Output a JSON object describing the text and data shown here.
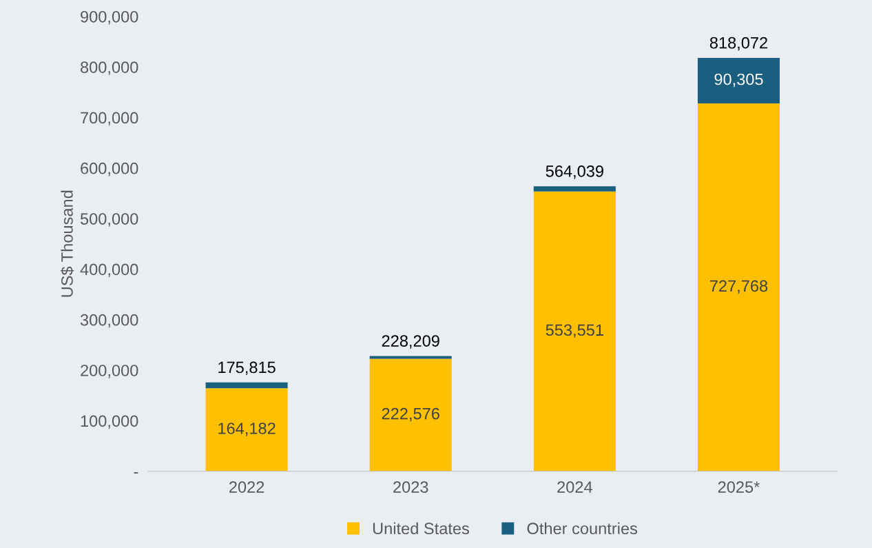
{
  "chart_data": {
    "type": "bar",
    "stacked": true,
    "ylabel": "US$ Thousand",
    "categories": [
      "2022",
      "2023",
      "2024",
      "2025*"
    ],
    "series": [
      {
        "name": "United States",
        "color": "#ffc000",
        "values": [
          164182,
          222576,
          553551,
          727768
        ],
        "value_labels": [
          "164,182",
          "222,576",
          "553,551",
          "727,768"
        ]
      },
      {
        "name": "Other countries",
        "color": "#1b5f80",
        "values": [
          11633,
          5633,
          10488,
          90305
        ],
        "value_labels": [
          null,
          null,
          null,
          "90,305"
        ]
      }
    ],
    "totals": [
      "175,815",
      "228,209",
      "564,039",
      "818,072"
    ],
    "ylim": [
      0,
      900000
    ],
    "yticks": [
      {
        "value": 0,
        "label": "-"
      },
      {
        "value": 100000,
        "label": "100,000"
      },
      {
        "value": 200000,
        "label": "200,000"
      },
      {
        "value": 300000,
        "label": "300,000"
      },
      {
        "value": 400000,
        "label": "400,000"
      },
      {
        "value": 500000,
        "label": "500,000"
      },
      {
        "value": 600000,
        "label": "600,000"
      },
      {
        "value": 700000,
        "label": "700,000"
      },
      {
        "value": 800000,
        "label": "800,000"
      },
      {
        "value": 900000,
        "label": "900,000"
      }
    ],
    "grid": false,
    "legend": "bottom"
  }
}
